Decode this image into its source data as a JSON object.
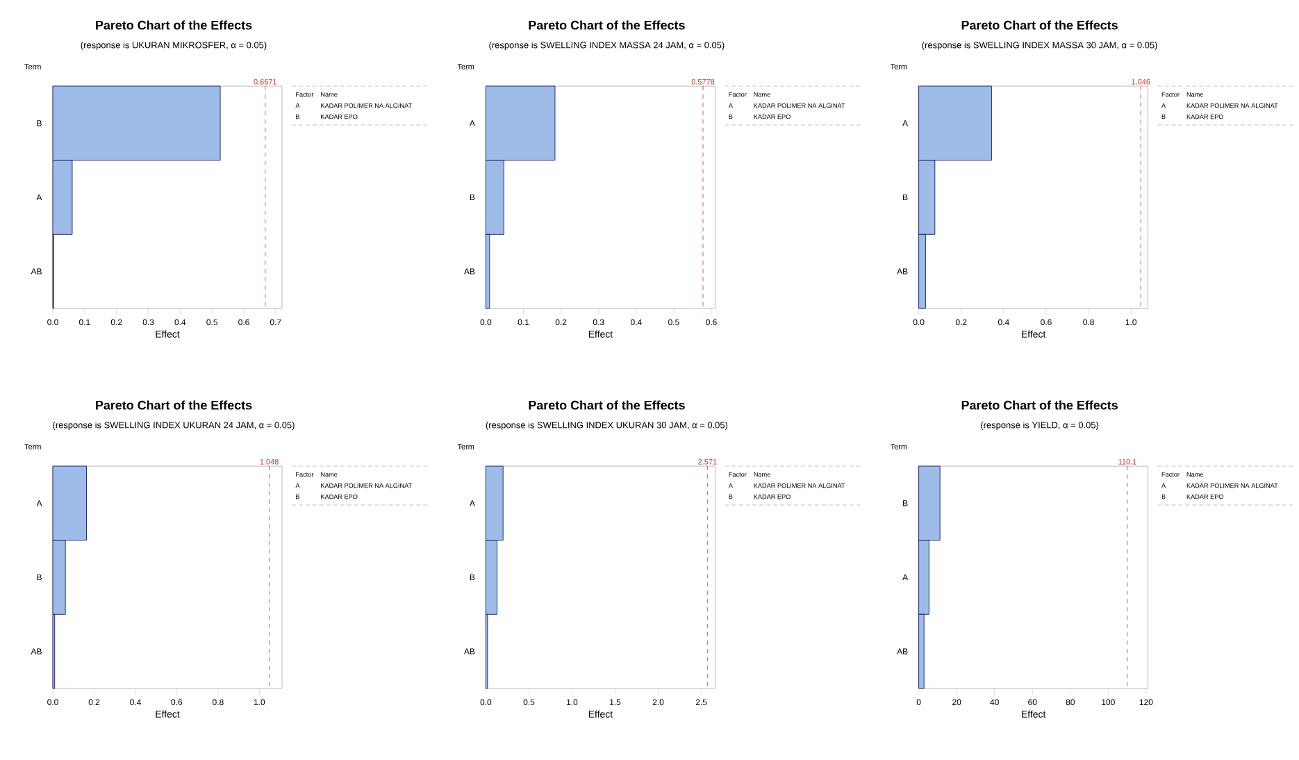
{
  "chart_data": [
    {
      "type": "bar",
      "orientation": "horizontal",
      "title": "Pareto Chart of the Effects",
      "subtitle": "(response is UKURAN MIKROSFER, α = 0.05)",
      "xlabel": "Effect",
      "ylabel": "Term",
      "categories": [
        "B",
        "A",
        "AB"
      ],
      "values": [
        0.526,
        0.061,
        0.003
      ],
      "color": "#9dbde8",
      "xlim": [
        0,
        0.72
      ],
      "xticks": [
        {
          "value": 0,
          "label": "0.0"
        },
        0.1,
        0.2,
        0.3,
        0.4,
        0.5,
        0.6,
        0.7
      ],
      "ref_lines": [
        {
          "axis": "x",
          "value": 0.6671,
          "label": "0.6671",
          "color": "#c0392b",
          "line_style": "dashed"
        }
      ],
      "annotations": [
        "Factor",
        "Name",
        "A",
        "KADAR POLIMER NA ALGINAT",
        "B",
        "KADAR EPO"
      ]
    },
    {
      "type": "bar",
      "orientation": "horizontal",
      "title": "Pareto Chart of the Effects",
      "subtitle": "(response is SWELLING INDEX MASSA 24 JAM, α = 0.05)",
      "xlabel": "Effect",
      "ylabel": "Term",
      "categories": [
        "A",
        "B",
        "AB"
      ],
      "values": [
        0.184,
        0.048,
        0.01
      ],
      "color": "#9dbde8",
      "xlim": [
        0,
        0.61
      ],
      "xticks": [
        {
          "value": 0,
          "label": "0.0"
        },
        0.1,
        0.2,
        0.3,
        0.4,
        0.5,
        0.6
      ],
      "ref_lines": [
        {
          "axis": "x",
          "value": 0.5778,
          "label": "0.5778",
          "color": "#c0392b",
          "line_style": "dashed"
        }
      ],
      "annotations": [
        "Factor",
        "Name",
        "A",
        "KADAR POLIMER NA ALGINAT",
        "B",
        "KADAR EPO"
      ]
    },
    {
      "type": "bar",
      "orientation": "horizontal",
      "title": "Pareto Chart of the Effects",
      "subtitle": "(response is SWELLING INDEX MASSA 30 JAM, α = 0.05)",
      "xlabel": "Effect",
      "ylabel": "Term",
      "categories": [
        "A",
        "B",
        "AB"
      ],
      "values": [
        0.343,
        0.076,
        0.032
      ],
      "color": "#9dbde8",
      "xlim": [
        0,
        1.08
      ],
      "xticks": [
        {
          "value": 0,
          "label": "0.0"
        },
        0.2,
        0.4,
        0.6,
        0.8,
        {
          "value": 1,
          "label": "1.0"
        }
      ],
      "ref_lines": [
        {
          "axis": "x",
          "value": 1.046,
          "label": "1.046",
          "color": "#c0392b",
          "line_style": "dashed"
        }
      ],
      "annotations": [
        "Factor",
        "Name",
        "A",
        "KADAR POLIMER NA ALGINAT",
        "B",
        "KADAR EPO"
      ]
    },
    {
      "type": "bar",
      "orientation": "horizontal",
      "title": "Pareto Chart of the Effects",
      "subtitle": "(response is SWELLING INDEX UKURAN 24 JAM, α = 0.05)",
      "xlabel": "Effect",
      "ylabel": "Term",
      "categories": [
        "A",
        "B",
        "AB"
      ],
      "values": [
        0.163,
        0.061,
        0.009
      ],
      "color": "#9dbde8",
      "xlim": [
        0,
        1.11
      ],
      "xticks": [
        {
          "value": 0,
          "label": "0.0"
        },
        0.2,
        0.4,
        0.6,
        0.8,
        {
          "value": 1,
          "label": "1.0"
        }
      ],
      "ref_lines": [
        {
          "axis": "x",
          "value": 1.048,
          "label": "1.048",
          "color": "#c0392b",
          "line_style": "dashed"
        }
      ],
      "annotations": [
        "Factor",
        "Name",
        "A",
        "KADAR POLIMER NA ALGINAT",
        "B",
        "KADAR EPO"
      ]
    },
    {
      "type": "bar",
      "orientation": "horizontal",
      "title": "Pareto Chart of the Effects",
      "subtitle": "(response is SWELLING INDEX UKURAN 30 JAM, α = 0.05)",
      "xlabel": "Effect",
      "ylabel": "Term",
      "categories": [
        "A",
        "B",
        "AB"
      ],
      "values": [
        0.2,
        0.13,
        0.02
      ],
      "color": "#9dbde8",
      "xlim": [
        0,
        2.66
      ],
      "xticks": [
        {
          "value": 0,
          "label": "0.0"
        },
        0.5,
        {
          "value": 1,
          "label": "1.0"
        },
        1.5,
        {
          "value": 2,
          "label": "2.0"
        },
        2.5
      ],
      "ref_lines": [
        {
          "axis": "x",
          "value": 2.571,
          "label": "2.571",
          "color": "#c0392b",
          "line_style": "dashed"
        }
      ],
      "annotations": [
        "Factor",
        "Name",
        "A",
        "KADAR POLIMER NA ALGINAT",
        "B",
        "KADAR EPO"
      ]
    },
    {
      "type": "bar",
      "orientation": "horizontal",
      "title": "Pareto Chart of the Effects",
      "subtitle": "(response is YIELD, α = 0.05)",
      "xlabel": "Effect",
      "ylabel": "Term",
      "categories": [
        "B",
        "A",
        "AB"
      ],
      "values": [
        11.2,
        5.4,
        2.8
      ],
      "color": "#9dbde8",
      "xlim": [
        0,
        121
      ],
      "xticks": [
        0,
        20,
        40,
        60,
        80,
        100,
        120
      ],
      "ref_lines": [
        {
          "axis": "x",
          "value": 110.1,
          "label": "110.1",
          "color": "#c0392b",
          "line_style": "dashed"
        }
      ],
      "annotations": [
        "Factor",
        "Name",
        "A",
        "KADAR POLIMER NA ALGINAT",
        "B",
        "KADAR EPO"
      ]
    }
  ]
}
